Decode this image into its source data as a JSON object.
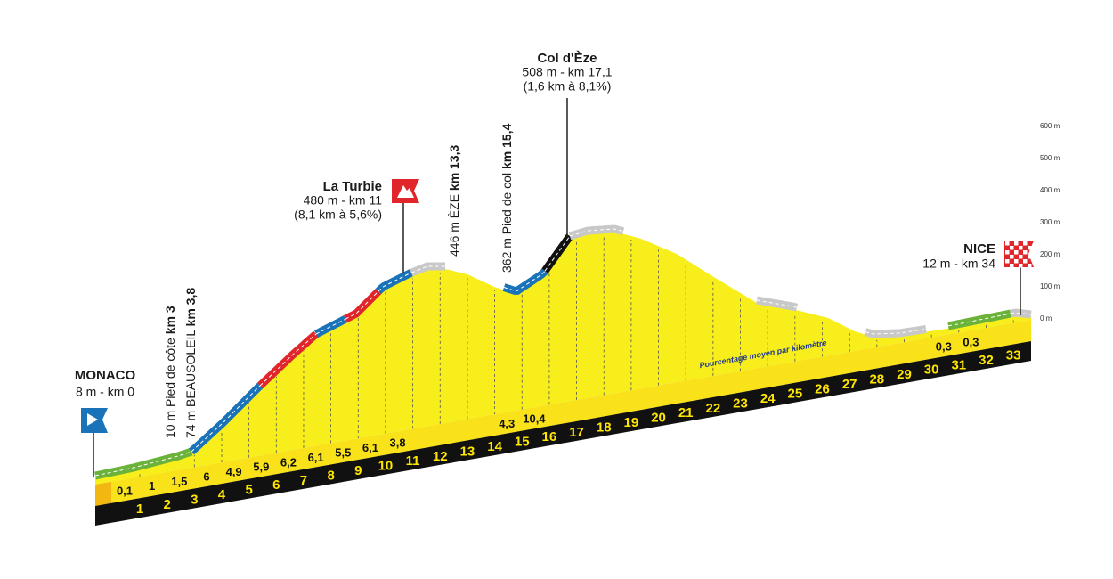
{
  "start": {
    "name": "MONACO",
    "detail": "8 m - km 0"
  },
  "finish": {
    "name": "NICE",
    "detail": "12 m - km 34"
  },
  "climbs": [
    {
      "name": "La Turbie",
      "detail": "480 m -  km 11",
      "gradient": "(8,1 km à 5,6%)"
    },
    {
      "name": "Col d'Èze",
      "detail": "508 m - km 17,1",
      "gradient": "(1,6 km à 8,1%)"
    }
  ],
  "points": [
    {
      "text": "10 m Pied de côte ",
      "km": "km 3"
    },
    {
      "text": "74 m BEAUSOLEIL ",
      "km": "km 3,8"
    },
    {
      "text": "446 m ÈZE ",
      "km": "km 13,3"
    },
    {
      "text": "362 m Pied de col ",
      "km": "km 15,4"
    }
  ],
  "km_markers": [
    "1",
    "2",
    "3",
    "4",
    "5",
    "6",
    "7",
    "8",
    "9",
    "10",
    "11",
    "12",
    "13",
    "14",
    "15",
    "16",
    "17",
    "18",
    "19",
    "20",
    "21",
    "22",
    "23",
    "24",
    "25",
    "26",
    "27",
    "28",
    "29",
    "30",
    "31",
    "32",
    "33"
  ],
  "gradients": [
    "0,1",
    "1",
    "1,5",
    "6",
    "4,9",
    "5,9",
    "6,2",
    "6,1",
    "5,5",
    "6,1",
    "3,8",
    null,
    null,
    null,
    "4,3",
    "10,4",
    null,
    null,
    null,
    null,
    null,
    null,
    null,
    null,
    null,
    null,
    null,
    null,
    null,
    null,
    "0,3",
    "0,3",
    null
  ],
  "axis_labels": [
    "600 m",
    "500 m",
    "400 m",
    "300 m",
    "200 m",
    "100 m",
    "0 m"
  ],
  "note": "Pourcentage moyen par kilomètre"
}
